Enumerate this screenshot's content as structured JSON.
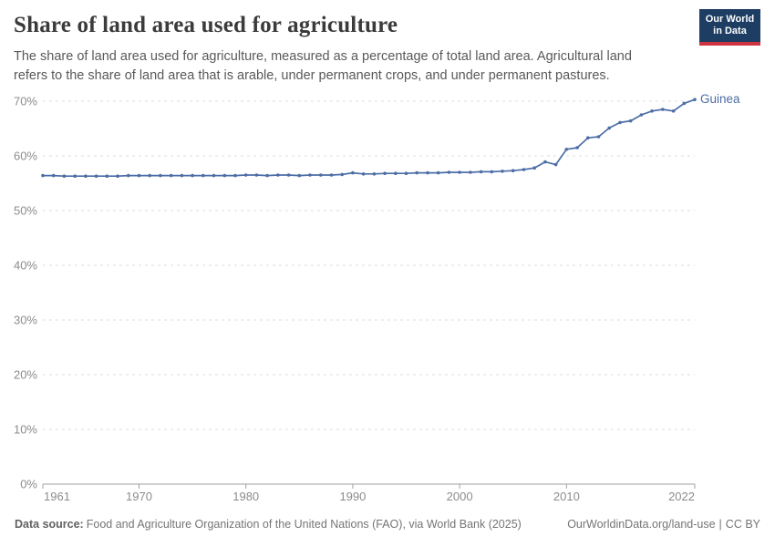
{
  "header": {
    "title": "Share of land area used for agriculture",
    "subtitle": "The share of land area used for agriculture, measured as a percentage of total land area. Agricultural land refers to the share of land area that is arable, under permanent crops, and under permanent pastures.",
    "logo": {
      "line1": "Our World",
      "line2": "in Data",
      "bg_color": "#1d3d63",
      "accent_color": "#cf3540"
    }
  },
  "chart_data": {
    "type": "line",
    "title": "Share of land area used for agriculture",
    "entity": "Guinea",
    "unit": "%",
    "grid": "horizontal-dashed",
    "legend_position": "end-of-line-label",
    "ylim": [
      0,
      70
    ],
    "yticks": [
      0,
      10,
      20,
      30,
      40,
      50,
      60,
      70
    ],
    "ytick_suffix": "%",
    "xticks": [
      1961,
      1970,
      1980,
      1990,
      2000,
      2010,
      2022
    ],
    "x": [
      1961,
      1962,
      1963,
      1964,
      1965,
      1966,
      1967,
      1968,
      1969,
      1970,
      1971,
      1972,
      1973,
      1974,
      1975,
      1976,
      1977,
      1978,
      1979,
      1980,
      1981,
      1982,
      1983,
      1984,
      1985,
      1986,
      1987,
      1988,
      1989,
      1990,
      1991,
      1992,
      1993,
      1994,
      1995,
      1996,
      1997,
      1998,
      1999,
      2000,
      2001,
      2002,
      2003,
      2004,
      2005,
      2006,
      2007,
      2008,
      2009,
      2010,
      2011,
      2012,
      2013,
      2014,
      2015,
      2016,
      2017,
      2018,
      2019,
      2020,
      2021,
      2022
    ],
    "series": [
      {
        "name": "Guinea",
        "color": "#4c6da6",
        "values": [
          56.4,
          56.4,
          56.3,
          56.3,
          56.3,
          56.3,
          56.3,
          56.3,
          56.4,
          56.4,
          56.4,
          56.4,
          56.4,
          56.4,
          56.4,
          56.4,
          56.4,
          56.4,
          56.4,
          56.5,
          56.5,
          56.4,
          56.5,
          56.5,
          56.4,
          56.5,
          56.5,
          56.5,
          56.6,
          56.9,
          56.7,
          56.7,
          56.8,
          56.8,
          56.8,
          56.9,
          56.9,
          56.9,
          57.0,
          57.0,
          57.0,
          57.1,
          57.1,
          57.2,
          57.3,
          57.5,
          57.8,
          58.9,
          58.4,
          61.2,
          61.5,
          63.3,
          63.5,
          65.1,
          66.1,
          66.4,
          67.5,
          68.2,
          68.5,
          68.2,
          69.6,
          70.3
        ]
      }
    ],
    "axis_color": "#a1a1a1",
    "gridline_color": "#dedede",
    "tick_label_color": "#8c8c8c"
  },
  "footer": {
    "source_label": "Data source:",
    "source_text": "Food and Agriculture Organization of the United Nations (FAO), via World Bank (2025)",
    "link": "OurWorldinData.org/land-use",
    "separator": "|",
    "license": "CC BY"
  }
}
